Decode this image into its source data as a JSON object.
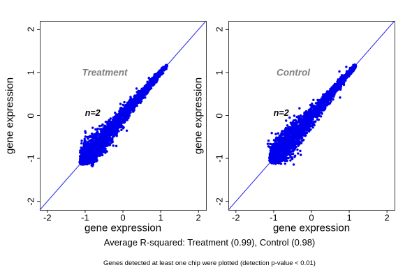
{
  "chart_data": {
    "type": "scatter",
    "title": "",
    "legend": "none",
    "grid": false,
    "colors": {
      "points": "#0000ee",
      "identity_line": "#2a2aee",
      "frame": "#3d3d3d",
      "tick": "#222222",
      "text": "#000000",
      "panel_label": "#808080"
    },
    "panels": [
      {
        "label": "Treatment",
        "label_pos": [
          -0.48,
          1.0
        ],
        "annotation": "n=2",
        "annotation_pos": [
          -0.8,
          0.05
        ],
        "xlabel": "gene expression",
        "ylabel": "gene expression",
        "xlim": [
          -2.2,
          2.2
        ],
        "ylim": [
          -2.2,
          2.2
        ],
        "xticks": [
          -2,
          -1,
          0,
          1,
          2
        ],
        "yticks": [
          -2,
          -1,
          0,
          1,
          2
        ],
        "identity_line": true,
        "r_squared": 0.99,
        "cluster": {
          "description": "dense comet-shaped cloud of gene expression replicate points along y=x",
          "n": 2800,
          "t_min": -1.12,
          "t_max": 1.17,
          "density_skew": 1.9,
          "width_profile": [
            [
              -1.12,
              0.03
            ],
            [
              -0.95,
              0.2
            ],
            [
              -0.72,
              0.28
            ],
            [
              -0.45,
              0.22
            ],
            [
              -0.1,
              0.16
            ],
            [
              0.3,
              0.11
            ],
            [
              0.7,
              0.08
            ],
            [
              1.0,
              0.055
            ],
            [
              1.17,
              0.03
            ]
          ],
          "n_outliers": 16,
          "dot_radius": 1.7,
          "seed": 20
        }
      },
      {
        "label": "Control",
        "label_pos": [
          -0.48,
          1.0
        ],
        "annotation": "n=2",
        "annotation_pos": [
          -0.8,
          0.05
        ],
        "xlabel": "gene expression",
        "ylabel": "gene expression",
        "xlim": [
          -2.2,
          2.2
        ],
        "ylim": [
          -2.2,
          2.2
        ],
        "xticks": [
          -2,
          -1,
          0,
          1,
          2
        ],
        "yticks": [
          -2,
          -1,
          0,
          1,
          2
        ],
        "identity_line": true,
        "r_squared": 0.98,
        "cluster": {
          "description": "dense comet-shaped cloud of gene expression replicate points along y=x, slightly wider than Treatment",
          "n": 2800,
          "t_min": -1.08,
          "t_max": 1.17,
          "density_skew": 1.9,
          "width_profile": [
            [
              -1.08,
              0.035
            ],
            [
              -0.92,
              0.23
            ],
            [
              -0.7,
              0.31
            ],
            [
              -0.45,
              0.25
            ],
            [
              -0.1,
              0.18
            ],
            [
              0.3,
              0.125
            ],
            [
              0.7,
              0.09
            ],
            [
              1.0,
              0.06
            ],
            [
              1.17,
              0.035
            ]
          ],
          "n_outliers": 16,
          "dot_radius": 1.7,
          "seed": 7
        }
      }
    ]
  },
  "footer": {
    "summary": "Average R-squared: Treatment (0.99), Control (0.98)",
    "note": "Genes detected at least one chip were plotted (detection p-value < 0.01)"
  }
}
